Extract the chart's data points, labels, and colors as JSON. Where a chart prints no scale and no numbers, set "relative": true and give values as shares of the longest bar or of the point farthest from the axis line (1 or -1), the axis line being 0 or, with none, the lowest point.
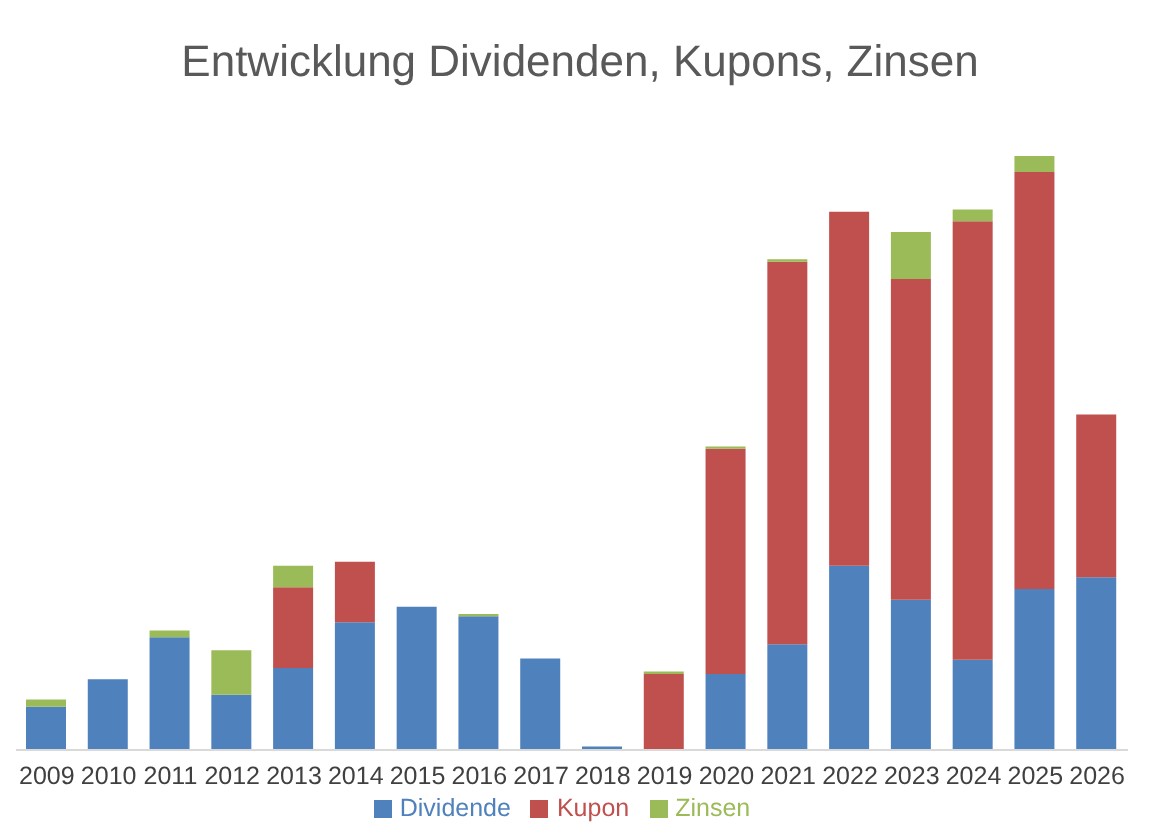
{
  "chart_data": {
    "type": "bar",
    "title": "Entwicklung Dividenden, Kupons, Zinsen",
    "relative": true,
    "stacked": true,
    "legend": "bottom",
    "grid": false,
    "categories": [
      "2009",
      "2010",
      "2011",
      "2012",
      "2013",
      "2014",
      "2015",
      "2016",
      "2017",
      "2018",
      "2019",
      "2020",
      "2021",
      "2022",
      "2023",
      "2024",
      "2025",
      "2026"
    ],
    "series": [
      {
        "name": "Dividende",
        "color": "#4f81bd",
        "values": [
          0.073,
          0.119,
          0.19,
          0.093,
          0.138,
          0.215,
          0.241,
          0.225,
          0.154,
          0.006,
          0,
          0.128,
          0.178,
          0.31,
          0.253,
          0.152,
          0.271,
          0.291
        ]
      },
      {
        "name": "Kupon",
        "color": "#c0504d",
        "values": [
          0,
          0,
          0,
          0,
          0.136,
          0.102,
          0,
          0,
          0,
          0,
          0.128,
          0.379,
          0.644,
          0.596,
          0.54,
          0.738,
          0.702,
          0.274
        ]
      },
      {
        "name": "Zinsen",
        "color": "#9bbb59",
        "values": [
          0.012,
          0,
          0.011,
          0.075,
          0.036,
          0,
          0,
          0.004,
          0,
          0,
          0.004,
          0.004,
          0.004,
          0,
          0.079,
          0.02,
          0.027,
          0
        ]
      }
    ]
  }
}
